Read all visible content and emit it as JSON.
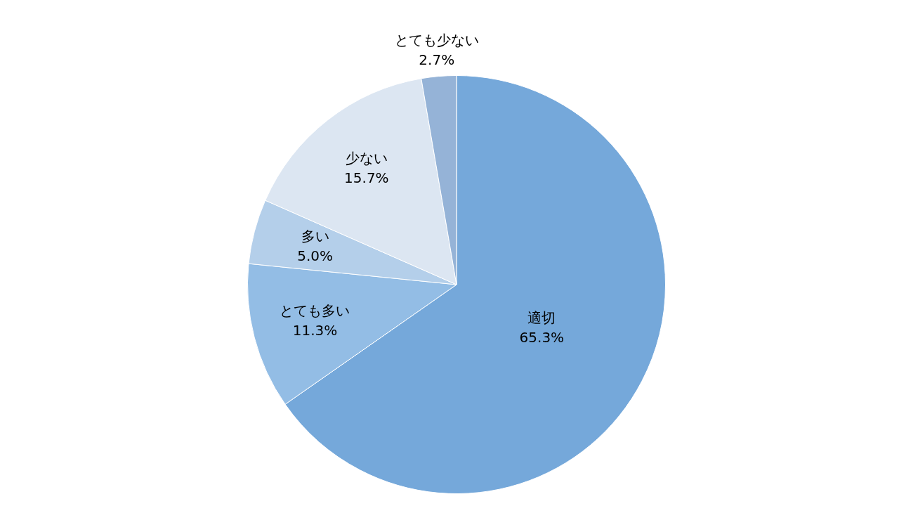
{
  "chart_data": {
    "type": "pie",
    "categories": [
      "適切",
      "とても多い",
      "多い",
      "少ない",
      "とても少ない"
    ],
    "values": [
      65.3,
      11.3,
      5.0,
      15.7,
      2.7
    ],
    "value_labels": [
      "65.3%",
      "11.3%",
      "5.0%",
      "15.7%",
      "2.7%"
    ],
    "colors": [
      "#75a8da",
      "#93bde5",
      "#b4cfea",
      "#dce6f2",
      "#95b3d7"
    ],
    "data_labels": true
  }
}
